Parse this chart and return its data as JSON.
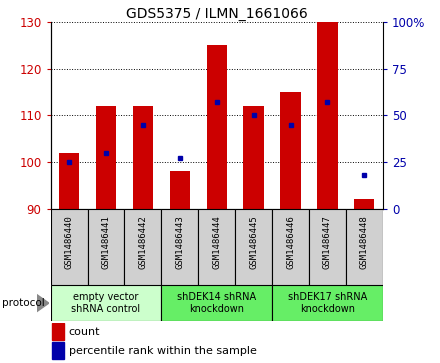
{
  "title": "GDS5375 / ILMN_1661066",
  "samples": [
    "GSM1486440",
    "GSM1486441",
    "GSM1486442",
    "GSM1486443",
    "GSM1486444",
    "GSM1486445",
    "GSM1486446",
    "GSM1486447",
    "GSM1486448"
  ],
  "counts": [
    102,
    112,
    112,
    98,
    125,
    112,
    115,
    130,
    92
  ],
  "percentiles": [
    25,
    30,
    45,
    27,
    57,
    50,
    45,
    57,
    18
  ],
  "ylim_left": [
    90,
    130
  ],
  "ylim_right": [
    0,
    100
  ],
  "yticks_left": [
    90,
    100,
    110,
    120,
    130
  ],
  "yticks_right": [
    0,
    25,
    50,
    75,
    100
  ],
  "ytick_labels_right": [
    "0",
    "25",
    "50",
    "75",
    "100%"
  ],
  "bar_color": "#cc0000",
  "percentile_color": "#0000aa",
  "bar_bottom": 90,
  "bar_width": 0.55,
  "groups": [
    {
      "label": "empty vector\nshRNA control",
      "start": 0,
      "end": 2,
      "color": "#ccffcc"
    },
    {
      "label": "shDEK14 shRNA\nknockdown",
      "start": 3,
      "end": 5,
      "color": "#66ee66"
    },
    {
      "label": "shDEK17 shRNA\nknockdown",
      "start": 6,
      "end": 8,
      "color": "#66ee66"
    }
  ],
  "legend_count_label": "count",
  "legend_percentile_label": "percentile rank within the sample",
  "protocol_label": "protocol",
  "tick_label_color_left": "#cc0000",
  "tick_label_color_right": "#0000aa",
  "sample_box_color": "#d0d0d0",
  "title_fontsize": 10
}
